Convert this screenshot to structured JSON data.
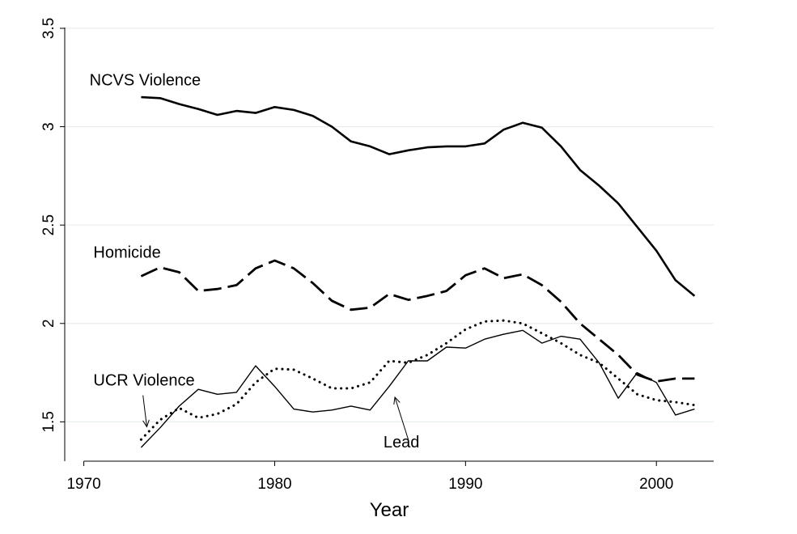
{
  "chart_data": {
    "type": "line",
    "title": "",
    "xlabel": "Year",
    "ylabel": "",
    "xlim": [
      1969,
      2003
    ],
    "ylim": [
      1.3,
      3.5
    ],
    "xticks": [
      1970,
      1980,
      1990,
      2000
    ],
    "yticks": [
      1.5,
      2,
      2.5,
      3,
      3.5
    ],
    "ytick_labels": [
      "1.5",
      "2",
      "2.5",
      "3",
      "3.5"
    ],
    "grid": true,
    "legend": "none",
    "series": [
      {
        "name": "NCVS Violence",
        "style": "solid-thick",
        "x": [
          1973,
          1974,
          1975,
          1976,
          1977,
          1978,
          1979,
          1980,
          1981,
          1982,
          1983,
          1984,
          1985,
          1986,
          1987,
          1988,
          1989,
          1990,
          1991,
          1992,
          1993,
          1994,
          1995,
          1996,
          1997,
          1998,
          1999,
          2000,
          2001,
          2002
        ],
        "values": [
          3.15,
          3.145,
          3.115,
          3.09,
          3.06,
          3.08,
          3.07,
          3.1,
          3.085,
          3.055,
          3.0,
          2.925,
          2.9,
          2.86,
          2.88,
          2.895,
          2.9,
          2.9,
          2.915,
          2.985,
          3.02,
          2.995,
          2.9,
          2.78,
          2.7,
          2.61,
          2.49,
          2.37,
          2.22,
          2.14
        ]
      },
      {
        "name": "Homicide",
        "style": "long-dash",
        "x": [
          1973,
          1974,
          1975,
          1976,
          1977,
          1978,
          1979,
          1980,
          1981,
          1982,
          1983,
          1984,
          1985,
          1986,
          1987,
          1988,
          1989,
          1990,
          1991,
          1992,
          1993,
          1994,
          1995,
          1996,
          1997,
          1998,
          1999,
          2000,
          2001,
          2002
        ],
        "values": [
          2.24,
          2.285,
          2.26,
          2.165,
          2.175,
          2.195,
          2.28,
          2.32,
          2.28,
          2.205,
          2.115,
          2.07,
          2.08,
          2.15,
          2.12,
          2.14,
          2.165,
          2.245,
          2.28,
          2.23,
          2.25,
          2.195,
          2.11,
          2.0,
          1.92,
          1.84,
          1.74,
          1.705,
          1.72,
          1.72
        ]
      },
      {
        "name": "UCR Violence",
        "style": "dotted",
        "x": [
          1973,
          1974,
          1975,
          1976,
          1977,
          1978,
          1979,
          1980,
          1981,
          1982,
          1983,
          1984,
          1985,
          1986,
          1987,
          1988,
          1989,
          1990,
          1991,
          1992,
          1993,
          1994,
          1995,
          1996,
          1997,
          1998,
          1999,
          2000,
          2001,
          2002
        ],
        "values": [
          1.41,
          1.51,
          1.57,
          1.52,
          1.54,
          1.59,
          1.7,
          1.77,
          1.765,
          1.72,
          1.67,
          1.67,
          1.7,
          1.81,
          1.8,
          1.84,
          1.9,
          1.97,
          2.01,
          2.015,
          2.0,
          1.95,
          1.9,
          1.84,
          1.8,
          1.72,
          1.64,
          1.61,
          1.6,
          1.585
        ]
      },
      {
        "name": "Lead",
        "style": "solid-thin",
        "x": [
          1973,
          1974,
          1975,
          1976,
          1977,
          1978,
          1979,
          1980,
          1981,
          1982,
          1983,
          1984,
          1985,
          1986,
          1987,
          1988,
          1989,
          1990,
          1991,
          1992,
          1993,
          1994,
          1995,
          1996,
          1997,
          1998,
          1999,
          2000,
          2001,
          2002
        ],
        "values": [
          1.37,
          1.47,
          1.58,
          1.665,
          1.64,
          1.65,
          1.785,
          1.68,
          1.565,
          1.55,
          1.56,
          1.58,
          1.56,
          1.68,
          1.81,
          1.81,
          1.88,
          1.875,
          1.92,
          1.945,
          1.965,
          1.9,
          1.935,
          1.92,
          1.8,
          1.62,
          1.75,
          1.7,
          1.535,
          1.565
        ]
      }
    ],
    "annotations": [
      {
        "text": "NCVS Violence",
        "x": 1970.3,
        "y": 3.21
      },
      {
        "text": "Homicide",
        "x": 1970.5,
        "y": 2.335
      },
      {
        "text": "UCR Violence",
        "x": 1970.5,
        "y": 1.685
      },
      {
        "text": "Lead",
        "x": 1985.7,
        "y": 1.37
      }
    ],
    "arrows": [
      {
        "label": "UCR Violence",
        "from": [
          1973.1,
          1.635
        ],
        "to": [
          1973.3,
          1.475
        ]
      },
      {
        "label": "Lead",
        "from": [
          1987.0,
          1.41
        ],
        "to": [
          1986.3,
          1.625
        ]
      }
    ]
  }
}
